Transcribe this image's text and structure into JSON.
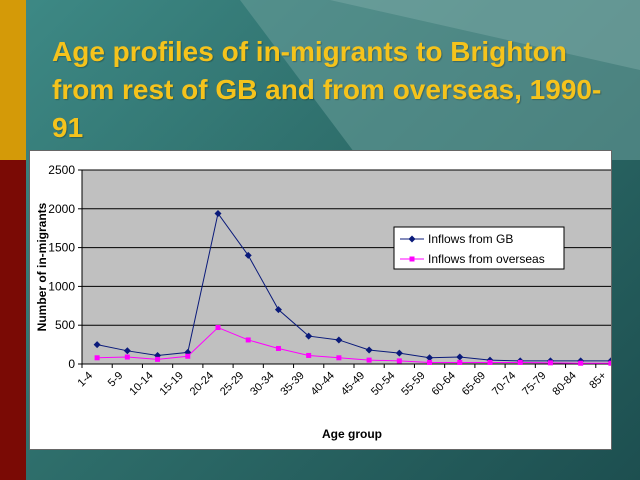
{
  "slide": {
    "title": "Age profiles of in-migrants to Brighton from rest of GB and from overseas, 1990-91"
  },
  "colors": {
    "title": "#f5c31c",
    "plot_bg": "#c0c0c0",
    "series_gb": "#0a1a7a",
    "series_overseas": "#ff00ff"
  },
  "chart_data": {
    "type": "line",
    "title": "",
    "xlabel": "Age group",
    "ylabel": "Number of in-migrants",
    "ylim": [
      0,
      2500
    ],
    "yticks": [
      "0",
      "500",
      "1000",
      "1500",
      "2000",
      "2500"
    ],
    "ytick_values": [
      0,
      500,
      1000,
      1500,
      2000,
      2500
    ],
    "grid": true,
    "legend_position": "right",
    "categories": [
      "1-4",
      "5-9",
      "10-14",
      "15-19",
      "20-24",
      "25-29",
      "30-34",
      "35-39",
      "40-44",
      "45-49",
      "50-54",
      "55-59",
      "60-64",
      "65-69",
      "70-74",
      "75-79",
      "80-84",
      "85+"
    ],
    "series": [
      {
        "name": "Inflows from GB",
        "values": [
          250,
          170,
          110,
          150,
          1940,
          1400,
          700,
          360,
          310,
          180,
          140,
          80,
          90,
          50,
          40,
          40,
          40,
          40
        ]
      },
      {
        "name": "Inflows from overseas",
        "values": [
          80,
          90,
          60,
          100,
          470,
          310,
          200,
          110,
          80,
          50,
          40,
          20,
          20,
          20,
          20,
          15,
          10,
          10
        ]
      }
    ]
  }
}
